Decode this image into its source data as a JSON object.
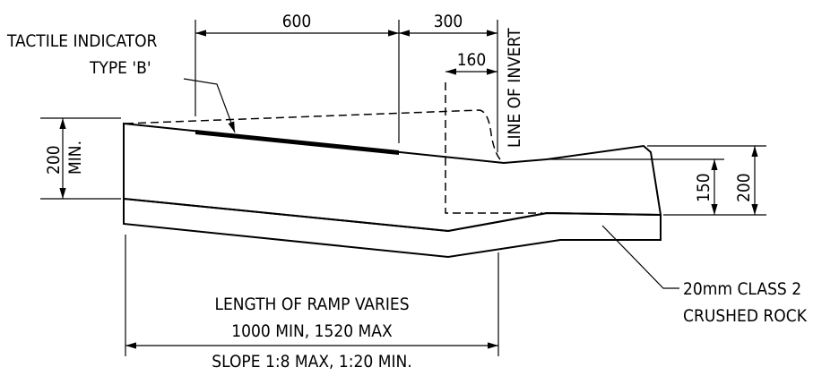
{
  "tactile_label": {
    "line1": "TACTILE INDICATOR",
    "line2": "TYPE 'B'"
  },
  "dimensions": {
    "tactile_width": "600",
    "kerb_offset": "300",
    "invert_offset": "160",
    "slab_thickness": {
      "value": "200",
      "note": "MIN."
    },
    "kerb_thickness": "150",
    "kerb_height": "200"
  },
  "invert_label": "LINE OF INVERT",
  "ramp_notes": {
    "line1": "LENGTH OF RAMP VARIES",
    "line2": "1000 MIN, 1520 MAX",
    "line3": "SLOPE 1:8 MAX, 1:20 MIN."
  },
  "base_label": {
    "line1": "20mm CLASS 2",
    "line2": "CRUSHED ROCK"
  }
}
